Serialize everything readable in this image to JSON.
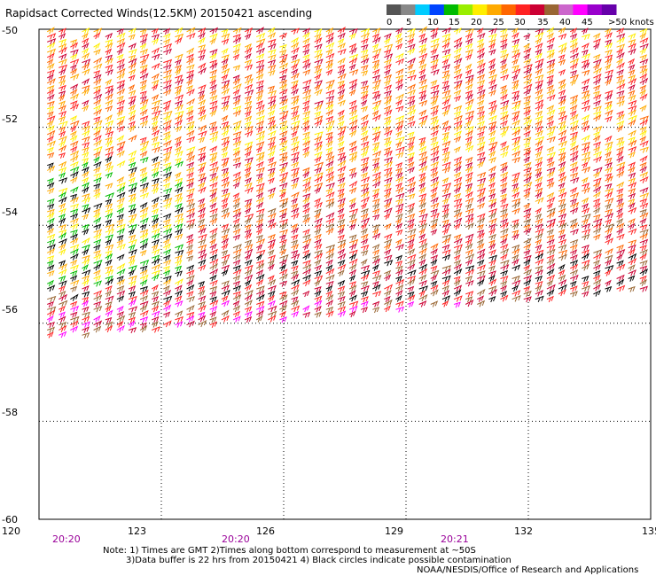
{
  "title": "Rapidsact Corrected Winds(12.5KM) 20150421 ascending",
  "legend": {
    "swatches": [
      "#555555",
      "#888888",
      "#00ccff",
      "#0044ff",
      "#00bb00",
      "#99ee00",
      "#ffee00",
      "#ffaa00",
      "#ff6600",
      "#ff2222",
      "#cc0033",
      "#996633",
      "#cc66cc",
      "#ff00ff",
      "#9900cc",
      "#6600aa"
    ],
    "labels": [
      "0",
      "5",
      "10",
      "15",
      "20",
      "25",
      "30",
      "35",
      "40",
      "45",
      ">50 knots"
    ]
  },
  "axes": {
    "lat_labels": [
      "-50",
      "-52",
      "-54",
      "-56",
      "-58",
      "-60"
    ],
    "lon_labels": [
      "120",
      "123",
      "126",
      "129",
      "132",
      "135"
    ]
  },
  "times": [
    "20:20",
    "20:20",
    "20:21"
  ],
  "notes": {
    "line1": "Note: 1) Times are GMT 2)Times along bottom correspond to measurement at ~50S",
    "line2": "3)Data buffer is 22 hrs from 20150421 4) Black circles indicate possible contamination",
    "credit": "NOAA/NESDIS/Office of Research and Applications"
  },
  "swath": {
    "color_bands": [
      {
        "lat_from": -50.0,
        "lat_to": -50.6,
        "colors": [
          "#ffaa00",
          "#ff2222",
          "#cc0033",
          "#ffee00"
        ]
      },
      {
        "lat_from": -50.6,
        "lat_to": -51.6,
        "colors": [
          "#ff2222",
          "#cc0033",
          "#ff6600",
          "#ffaa00"
        ]
      },
      {
        "lat_from": -51.6,
        "lat_to": -52.6,
        "colors": [
          "#ff6600",
          "#ff2222",
          "#ffaa00",
          "#ffee00"
        ]
      },
      {
        "lat_from": -52.6,
        "lat_to": -53.6,
        "colors": [
          "#ff2222",
          "#ff6600",
          "#cc0033",
          "#ffaa00"
        ]
      },
      {
        "lat_from": -53.6,
        "lat_to": -54.6,
        "colors": [
          "#cc0033",
          "#ff2222",
          "#996633",
          "#ff6600"
        ]
      },
      {
        "lat_from": -54.6,
        "lat_to": -55.6,
        "colors": [
          "#996633",
          "#cc0033",
          "#000000",
          "#ff2222"
        ]
      },
      {
        "lat_from": -55.6,
        "lat_to": -56.4,
        "colors": [
          "#ff00ff",
          "#cc0033",
          "#996633",
          "#ff2222"
        ]
      }
    ],
    "west_edge_colors": [
      "#ffee00",
      "#00bb00",
      "#000000",
      "#ffaa00"
    ]
  }
}
